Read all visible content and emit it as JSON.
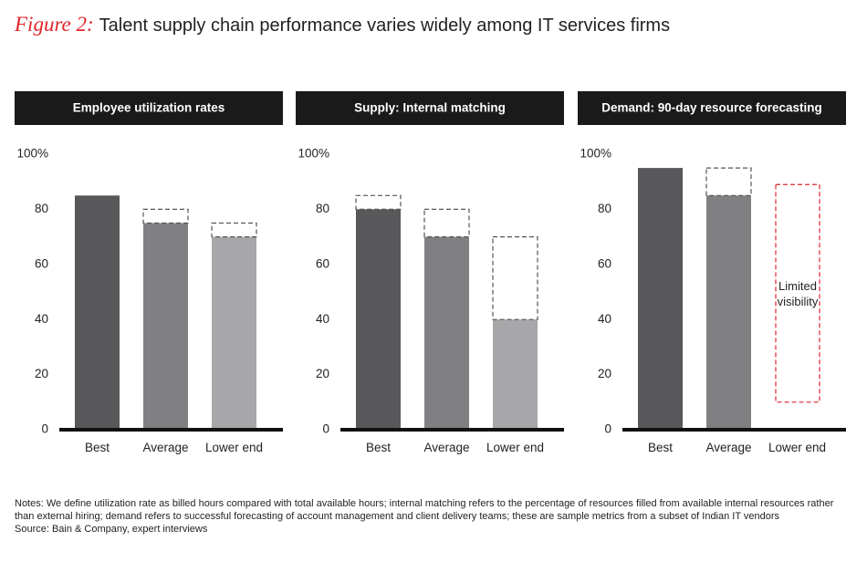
{
  "figure_label": "Figure 2:",
  "title": "Talent supply chain performance varies widely among IT services firms",
  "notes": "Notes: We define utilization rate as billed hours compared with total available hours; internal matching refers to the percentage of resources filled from available internal resources rather than external hiring; demand refers to successful forecasting of account management and client delivery teams; these are sample metrics from a subset of Indian IT vendors",
  "source": "Source: Bain & Company, expert interviews",
  "chart_data": [
    {
      "type": "bar",
      "title": "Employee utilization rates",
      "categories": [
        "Best",
        "Average",
        "Lower end"
      ],
      "values": [
        85,
        75,
        70
      ],
      "upper_values": [
        null,
        80,
        75
      ],
      "colors": [
        "#58585a",
        "#808083",
        "#a7a7a9"
      ],
      "dashed_color": "#555555",
      "ylim": [
        0,
        100
      ],
      "yticks": [
        0,
        20,
        40,
        60,
        80,
        {
          "value": 100,
          "label": "100%"
        }
      ]
    },
    {
      "type": "bar",
      "title": "Supply:  Internal matching",
      "categories": [
        "Best",
        "Average",
        "Lower end"
      ],
      "values": [
        80,
        70,
        40
      ],
      "upper_values": [
        85,
        80,
        70
      ],
      "colors": [
        "#58585a",
        "#808083",
        "#a7a7a9"
      ],
      "dashed_color": "#555555",
      "ylim": [
        0,
        100
      ],
      "yticks": [
        0,
        20,
        40,
        60,
        80,
        {
          "value": 100,
          "label": "100%"
        }
      ]
    },
    {
      "type": "bar",
      "title": "Demand: 90-day resource forecasting",
      "categories": [
        "Best",
        "Average",
        "Lower end"
      ],
      "values": [
        95,
        85,
        null
      ],
      "upper_values": [
        null,
        95,
        null
      ],
      "colors": [
        "#58585a",
        "#808083",
        "#a7a7a9"
      ],
      "dashed_color": "#555555",
      "range_box": [
        10,
        89
      ],
      "range_box_color": "#e1262b",
      "annotation": "Limited visibility",
      "ylim": [
        0,
        100
      ],
      "yticks": [
        0,
        20,
        40,
        60,
        80,
        {
          "value": 100,
          "label": "100%"
        }
      ]
    }
  ]
}
